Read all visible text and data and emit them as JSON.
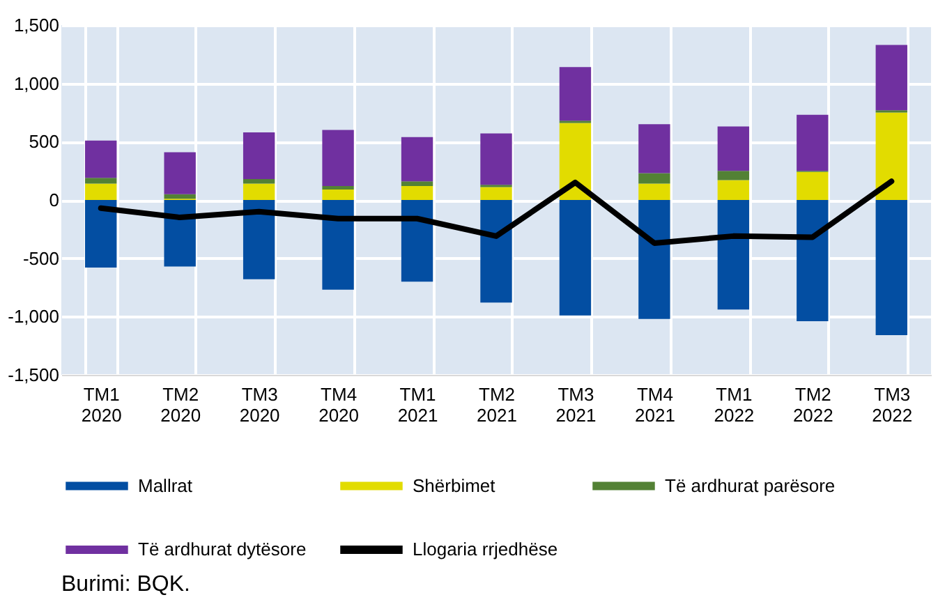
{
  "chart_data": {
    "type": "bar",
    "stacked": true,
    "categories": [
      "TM1\n2020",
      "TM2\n2020",
      "TM3\n2020",
      "TM4\n2020",
      "TM1\n2021",
      "TM2\n2021",
      "TM3\n2021",
      "TM4\n2021",
      "TM1\n2022",
      "TM2\n2022",
      "TM3\n2022"
    ],
    "series": [
      {
        "name": "Mallrat",
        "color": "#034ea2",
        "values": [
          -580,
          -570,
          -680,
          -770,
          -700,
          -880,
          -990,
          -1020,
          -940,
          -1040,
          -1160
        ]
      },
      {
        "name": "Shërbimet",
        "color": "#e2dc00",
        "values": [
          140,
          10,
          140,
          90,
          120,
          110,
          660,
          140,
          170,
          240,
          750
        ]
      },
      {
        "name": "Të ardhurat parësore",
        "color": "#538135",
        "values": [
          50,
          40,
          40,
          30,
          40,
          20,
          20,
          90,
          80,
          10,
          20
        ]
      },
      {
        "name": "Të ardhurat dytësore",
        "color": "#7030a0",
        "values": [
          320,
          360,
          400,
          480,
          380,
          440,
          460,
          420,
          380,
          480,
          560
        ]
      },
      {
        "name": "Llogaria rrjedhëse",
        "color": "#000000",
        "type": "line",
        "values": [
          -70,
          -150,
          -100,
          -160,
          -160,
          -310,
          150,
          -370,
          -310,
          -320,
          160
        ]
      }
    ],
    "ylim": [
      -1500,
      1500
    ],
    "yticks": [
      {
        "value": -1500,
        "label": "-1,500"
      },
      {
        "value": -1000,
        "label": "-1,000"
      },
      -500,
      0,
      500,
      {
        "value": 1000,
        "label": "1,000"
      },
      {
        "value": 1500,
        "label": "1,500"
      }
    ],
    "grid": true,
    "legend": "bottom",
    "annotations": [
      "Burimi: BQK."
    ]
  }
}
